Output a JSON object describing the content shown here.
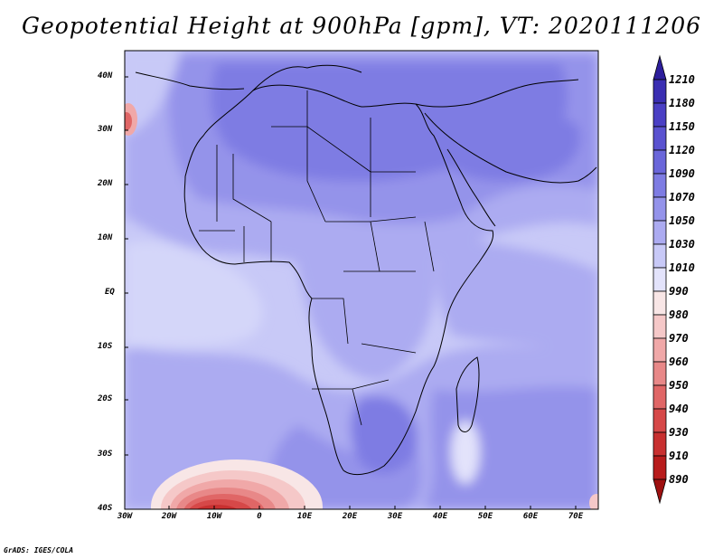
{
  "title": "Geopotential Height at 900hPa [gpm], VT: 2020111206",
  "credit": "GrADS: IGES/COLA",
  "map": {
    "lat_labels": [
      "40N",
      "30N",
      "20N",
      "10N",
      "EQ",
      "10S",
      "20S",
      "30S",
      "40S"
    ],
    "lon_labels": [
      "30W",
      "20W",
      "10W",
      "0",
      "10E",
      "20E",
      "30E",
      "40E",
      "50E",
      "60E",
      "70E"
    ]
  },
  "colorbar": {
    "levels": [
      "1210",
      "1180",
      "1150",
      "1120",
      "1090",
      "1070",
      "1050",
      "1030",
      "1010",
      "990",
      "980",
      "970",
      "960",
      "950",
      "940",
      "930",
      "910",
      "890"
    ],
    "colors": [
      "#2d1e9c",
      "#3a2eb2",
      "#4a3fc4",
      "#5a52d0",
      "#6a66da",
      "#7e7ce3",
      "#9493ea",
      "#acabf1",
      "#c8c9f7",
      "#e3e3fb",
      "#f8e6e6",
      "#f5c8c8",
      "#f0a8a8",
      "#e88888",
      "#e06666",
      "#d64848",
      "#c83030",
      "#b81c1c",
      "#9e1010"
    ]
  }
}
